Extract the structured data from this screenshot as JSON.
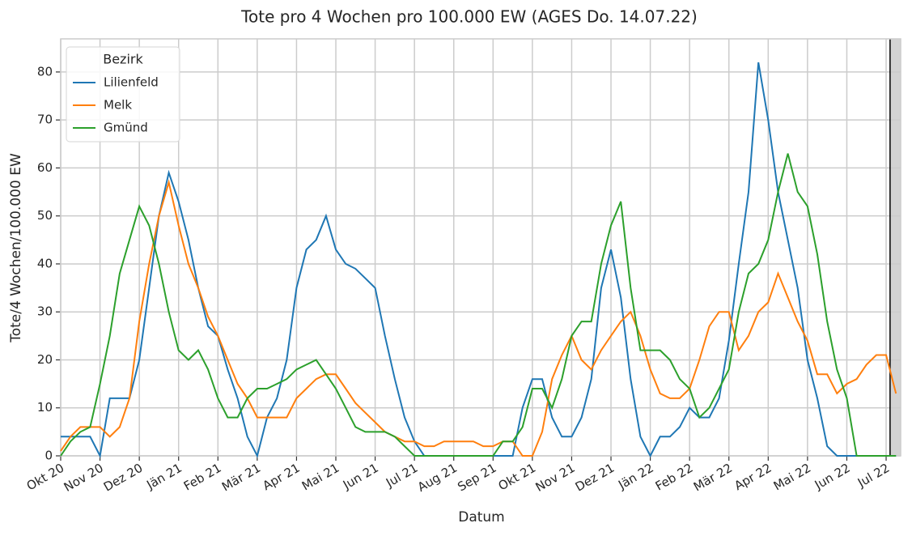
{
  "chart_data": {
    "type": "line",
    "title": "Tote pro 4 Wochen pro 100.000 EW (AGES Do. 14.07.22)",
    "x_label": "Datum",
    "y_label": "Tote/4 Wochen/100.000 EW",
    "legend_title": "Bezirk",
    "legend_position": "upper left",
    "grid": true,
    "x": [
      0,
      0.25,
      0.5,
      0.75,
      1,
      1.25,
      1.5,
      1.75,
      2,
      2.25,
      2.5,
      2.75,
      3,
      3.25,
      3.5,
      3.75,
      4,
      4.25,
      4.5,
      4.75,
      5,
      5.25,
      5.5,
      5.75,
      6,
      6.25,
      6.5,
      6.75,
      7,
      7.25,
      7.5,
      7.75,
      8,
      8.25,
      8.5,
      8.75,
      9,
      9.25,
      9.5,
      9.75,
      10,
      10.25,
      10.5,
      10.75,
      11,
      11.25,
      11.5,
      11.75,
      12,
      12.25,
      12.5,
      12.75,
      13,
      13.25,
      13.5,
      13.75,
      14,
      14.25,
      14.5,
      14.75,
      15,
      15.25,
      15.5,
      15.75,
      16,
      16.25,
      16.5,
      16.75,
      17,
      17.25,
      17.5,
      17.75,
      18,
      18.25,
      18.5,
      18.75,
      19,
      19.25,
      19.5,
      19.75,
      20,
      20.25,
      20.5,
      20.75,
      21,
      21.25
    ],
    "series": [
      {
        "name": "Lilienfeld",
        "color": "#1f77b4",
        "values": [
          4,
          4,
          4,
          4,
          0,
          12,
          12,
          12,
          20,
          35,
          50,
          59,
          53,
          45,
          35,
          27,
          25,
          18,
          12,
          4,
          0,
          8,
          12,
          20,
          35,
          43,
          45,
          50,
          43,
          40,
          39,
          37,
          35,
          25,
          16,
          8,
          3,
          0,
          0,
          0,
          0,
          0,
          0,
          0,
          0,
          0,
          0,
          10,
          16,
          16,
          8,
          4,
          4,
          8,
          16,
          35,
          43,
          33,
          16,
          4,
          0,
          4,
          4,
          6,
          10,
          8,
          8,
          12,
          24,
          40,
          55,
          82,
          70,
          55,
          45,
          35,
          20,
          12,
          2,
          0,
          0,
          0,
          0,
          0,
          0,
          0
        ]
      },
      {
        "name": "Melk",
        "color": "#ff7f0e",
        "values": [
          1,
          4,
          6,
          6,
          6,
          4,
          6,
          12,
          28,
          40,
          50,
          57,
          48,
          40,
          35,
          29,
          25,
          20,
          15,
          12,
          8,
          8,
          8,
          8,
          12,
          14,
          16,
          17,
          17,
          14,
          11,
          9,
          7,
          5,
          4,
          3,
          3,
          2,
          2,
          3,
          3,
          3,
          3,
          2,
          2,
          3,
          3,
          0,
          0,
          5,
          16,
          21,
          25,
          20,
          18,
          22,
          25,
          28,
          30,
          25,
          18,
          13,
          12,
          12,
          14,
          20,
          27,
          30,
          30,
          22,
          25,
          30,
          32,
          38,
          33,
          28,
          24,
          17,
          17,
          13,
          15,
          16,
          19,
          21,
          21,
          13
        ]
      },
      {
        "name": "Gmünd",
        "color": "#2ca02c",
        "values": [
          0,
          3,
          5,
          6,
          15,
          25,
          38,
          45,
          52,
          48,
          40,
          30,
          22,
          20,
          22,
          18,
          12,
          8,
          8,
          12,
          14,
          14,
          15,
          16,
          18,
          19,
          20,
          17,
          14,
          10,
          6,
          5,
          5,
          5,
          4,
          2,
          0,
          0,
          0,
          0,
          0,
          0,
          0,
          0,
          0,
          3,
          3,
          6,
          14,
          14,
          10,
          16,
          25,
          28,
          28,
          40,
          48,
          53,
          35,
          22,
          22,
          22,
          20,
          16,
          14,
          8,
          10,
          14,
          18,
          30,
          38,
          40,
          45,
          55,
          63,
          55,
          52,
          42,
          28,
          18,
          12,
          0,
          0,
          0,
          0,
          0
        ]
      }
    ],
    "xlim": [
      0,
      21.37
    ],
    "xticks": [
      {
        "value": 0,
        "label": "Okt 20"
      },
      {
        "value": 1,
        "label": "Nov 20"
      },
      {
        "value": 2,
        "label": "Dez 20"
      },
      {
        "value": 3,
        "label": "Jän 21"
      },
      {
        "value": 4,
        "label": "Feb 21"
      },
      {
        "value": 5,
        "label": "Mär 21"
      },
      {
        "value": 6,
        "label": "Apr 21"
      },
      {
        "value": 7,
        "label": "Mai 21"
      },
      {
        "value": 8,
        "label": "Jun 21"
      },
      {
        "value": 9,
        "label": "Jul 21"
      },
      {
        "value": 10,
        "label": "Aug 21"
      },
      {
        "value": 11,
        "label": "Sep 21"
      },
      {
        "value": 12,
        "label": "Okt 21"
      },
      {
        "value": 13,
        "label": "Nov 21"
      },
      {
        "value": 14,
        "label": "Dez 21"
      },
      {
        "value": 15,
        "label": "Jän 22"
      },
      {
        "value": 16,
        "label": "Feb 22"
      },
      {
        "value": 17,
        "label": "Mär 22"
      },
      {
        "value": 18,
        "label": "Apr 22"
      },
      {
        "value": 19,
        "label": "Mai 22"
      },
      {
        "value": 20,
        "label": "Jun 22"
      },
      {
        "value": 21,
        "label": "Jul 22"
      }
    ],
    "ylim": [
      0,
      86.9
    ],
    "yticks": [
      0,
      10,
      20,
      30,
      40,
      50,
      60,
      70,
      80
    ],
    "vline": 21.1,
    "vline_color": "#000000",
    "shade_color": "#d3d3d3"
  }
}
